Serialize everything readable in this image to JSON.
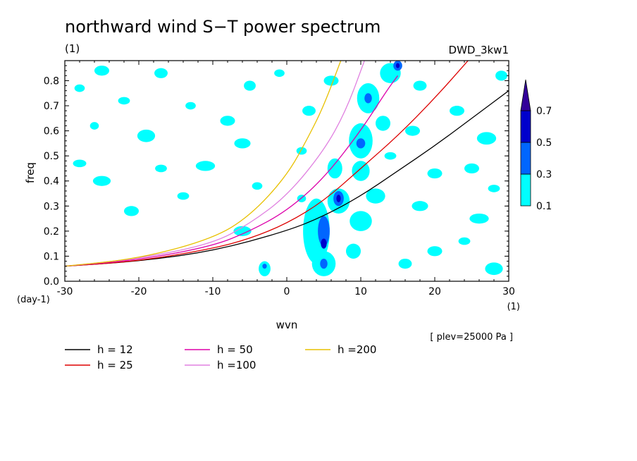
{
  "chart_data": {
    "type": "heatmap",
    "title": "northward wind S−T power spectrum",
    "subtitle_left": "(1)",
    "subtitle_right": "DWD_3kw1",
    "xlabel": "wvn",
    "ylabel": "freq",
    "x_unit": "(1)",
    "y_unit": "(day-1)",
    "annotation": "[ plev=25000 Pa ]",
    "xlim": [
      -30,
      30
    ],
    "ylim": [
      0,
      0.88
    ],
    "x_ticks": [
      -30,
      -20,
      -10,
      0,
      10,
      20,
      30
    ],
    "y_ticks": [
      0.0,
      0.1,
      0.2,
      0.3,
      0.4,
      0.5,
      0.6,
      0.7,
      0.8
    ],
    "y_tick_labels": [
      "0.0",
      "0.1",
      "0.2",
      "0.3",
      "0.4",
      "0.5",
      "0.6",
      "0.7",
      "0.8"
    ],
    "colorbar": {
      "levels": [
        "0.1",
        "0.3",
        "0.5",
        "0.7"
      ],
      "colors": [
        "#00ffff",
        "#0066ff",
        "#0000cc",
        "#330099"
      ]
    },
    "series": [
      {
        "name": "h = 12",
        "color": "#000000",
        "x": [
          -30,
          -20,
          -10,
          0,
          5,
          10,
          15,
          20,
          25,
          30
        ],
        "y": [
          0.06,
          0.08,
          0.12,
          0.2,
          0.26,
          0.34,
          0.44,
          0.54,
          0.65,
          0.76
        ]
      },
      {
        "name": "h = 25",
        "color": "#dd0000",
        "x": [
          -30,
          -20,
          -10,
          -5,
          0,
          5,
          10,
          15,
          20,
          24.5
        ],
        "y": [
          0.06,
          0.08,
          0.13,
          0.17,
          0.23,
          0.32,
          0.45,
          0.58,
          0.73,
          0.88
        ]
      },
      {
        "name": "h = 50",
        "color": "#dd00aa",
        "x": [
          -30,
          -20,
          -10,
          -5,
          0,
          5,
          10,
          13.5,
          15
        ],
        "y": [
          0.06,
          0.085,
          0.14,
          0.2,
          0.28,
          0.41,
          0.6,
          0.76,
          0.82
        ]
      },
      {
        "name": "h =100",
        "color": "#e080e0",
        "x": [
          -30,
          -20,
          -10,
          -5,
          0,
          5,
          8,
          10.5
        ],
        "y": [
          0.06,
          0.09,
          0.15,
          0.23,
          0.34,
          0.52,
          0.68,
          0.88
        ]
      },
      {
        "name": "h =200",
        "color": "#e8c000",
        "x": [
          -30,
          -20,
          -10,
          -5,
          0,
          3,
          5,
          7.3
        ],
        "y": [
          0.06,
          0.09,
          0.17,
          0.26,
          0.42,
          0.58,
          0.7,
          0.88
        ]
      }
    ],
    "contour_patches": [
      {
        "x": -25,
        "y": 0.84,
        "rx": 1.0,
        "ry": 0.02,
        "level": 0
      },
      {
        "x": -22,
        "y": 0.72,
        "rx": 0.8,
        "ry": 0.015,
        "level": 0
      },
      {
        "x": -28,
        "y": 0.77,
        "rx": 0.7,
        "ry": 0.015,
        "level": 0
      },
      {
        "x": -17,
        "y": 0.83,
        "rx": 0.9,
        "ry": 0.02,
        "level": 0
      },
      {
        "x": -13,
        "y": 0.7,
        "rx": 0.7,
        "ry": 0.015,
        "level": 0
      },
      {
        "x": -19,
        "y": 0.58,
        "rx": 1.2,
        "ry": 0.025,
        "level": 0
      },
      {
        "x": -11,
        "y": 0.46,
        "rx": 1.3,
        "ry": 0.02,
        "level": 0
      },
      {
        "x": -17,
        "y": 0.45,
        "rx": 0.8,
        "ry": 0.015,
        "level": 0
      },
      {
        "x": -25,
        "y": 0.4,
        "rx": 1.2,
        "ry": 0.02,
        "level": 0
      },
      {
        "x": -28,
        "y": 0.47,
        "rx": 0.9,
        "ry": 0.015,
        "level": 0
      },
      {
        "x": -8,
        "y": 0.64,
        "rx": 1.0,
        "ry": 0.02,
        "level": 0
      },
      {
        "x": -5,
        "y": 0.78,
        "rx": 0.8,
        "ry": 0.02,
        "level": 0
      },
      {
        "x": -6,
        "y": 0.55,
        "rx": 1.1,
        "ry": 0.02,
        "level": 0
      },
      {
        "x": -21,
        "y": 0.28,
        "rx": 1.0,
        "ry": 0.02,
        "level": 0
      },
      {
        "x": -14,
        "y": 0.34,
        "rx": 0.8,
        "ry": 0.015,
        "level": 0
      },
      {
        "x": -4,
        "y": 0.38,
        "rx": 0.7,
        "ry": 0.015,
        "level": 0
      },
      {
        "x": -6,
        "y": 0.2,
        "rx": 1.2,
        "ry": 0.02,
        "level": 0
      },
      {
        "x": -3,
        "y": 0.05,
        "rx": 0.8,
        "ry": 0.03,
        "level": 0
      },
      {
        "x": -3,
        "y": 0.06,
        "rx": 0.3,
        "ry": 0.01,
        "level": 1
      },
      {
        "x": 3,
        "y": 0.68,
        "rx": 0.9,
        "ry": 0.02,
        "level": 0
      },
      {
        "x": 6,
        "y": 0.8,
        "rx": 1.0,
        "ry": 0.02,
        "level": 0
      },
      {
        "x": 2,
        "y": 0.52,
        "rx": 0.7,
        "ry": 0.015,
        "level": 0
      },
      {
        "x": 4,
        "y": 0.2,
        "rx": 1.8,
        "ry": 0.13,
        "level": 0
      },
      {
        "x": 5,
        "y": 0.2,
        "rx": 0.8,
        "ry": 0.06,
        "level": 1
      },
      {
        "x": 5,
        "y": 0.15,
        "rx": 0.4,
        "ry": 0.02,
        "level": 2
      },
      {
        "x": 5,
        "y": 0.07,
        "rx": 1.6,
        "ry": 0.05,
        "level": 0
      },
      {
        "x": 5,
        "y": 0.07,
        "rx": 0.5,
        "ry": 0.02,
        "level": 1
      },
      {
        "x": 7,
        "y": 0.32,
        "rx": 1.5,
        "ry": 0.05,
        "level": 0
      },
      {
        "x": 7,
        "y": 0.33,
        "rx": 0.7,
        "ry": 0.03,
        "level": 1
      },
      {
        "x": 7,
        "y": 0.33,
        "rx": 0.3,
        "ry": 0.015,
        "level": 2
      },
      {
        "x": 6.5,
        "y": 0.45,
        "rx": 1.0,
        "ry": 0.04,
        "level": 0
      },
      {
        "x": 10,
        "y": 0.56,
        "rx": 1.6,
        "ry": 0.07,
        "level": 0
      },
      {
        "x": 10,
        "y": 0.55,
        "rx": 0.6,
        "ry": 0.02,
        "level": 1
      },
      {
        "x": 10,
        "y": 0.44,
        "rx": 1.2,
        "ry": 0.04,
        "level": 0
      },
      {
        "x": 11,
        "y": 0.73,
        "rx": 1.5,
        "ry": 0.06,
        "level": 0
      },
      {
        "x": 11,
        "y": 0.73,
        "rx": 0.5,
        "ry": 0.02,
        "level": 1
      },
      {
        "x": 14,
        "y": 0.83,
        "rx": 1.4,
        "ry": 0.04,
        "level": 0
      },
      {
        "x": 15,
        "y": 0.86,
        "rx": 0.6,
        "ry": 0.02,
        "level": 1
      },
      {
        "x": 15,
        "y": 0.86,
        "rx": 0.25,
        "ry": 0.01,
        "level": 2
      },
      {
        "x": 13,
        "y": 0.63,
        "rx": 1.0,
        "ry": 0.03,
        "level": 0
      },
      {
        "x": 12,
        "y": 0.34,
        "rx": 1.3,
        "ry": 0.03,
        "level": 0
      },
      {
        "x": 10,
        "y": 0.24,
        "rx": 1.5,
        "ry": 0.04,
        "level": 0
      },
      {
        "x": 9,
        "y": 0.12,
        "rx": 1.0,
        "ry": 0.03,
        "level": 0
      },
      {
        "x": 14,
        "y": 0.5,
        "rx": 0.8,
        "ry": 0.015,
        "level": 0
      },
      {
        "x": 17,
        "y": 0.6,
        "rx": 1.0,
        "ry": 0.02,
        "level": 0
      },
      {
        "x": 18,
        "y": 0.78,
        "rx": 0.9,
        "ry": 0.02,
        "level": 0
      },
      {
        "x": 23,
        "y": 0.68,
        "rx": 1.0,
        "ry": 0.02,
        "level": 0
      },
      {
        "x": 27,
        "y": 0.57,
        "rx": 1.3,
        "ry": 0.025,
        "level": 0
      },
      {
        "x": 25,
        "y": 0.45,
        "rx": 1.0,
        "ry": 0.02,
        "level": 0
      },
      {
        "x": 20,
        "y": 0.43,
        "rx": 1.0,
        "ry": 0.02,
        "level": 0
      },
      {
        "x": 28,
        "y": 0.37,
        "rx": 0.8,
        "ry": 0.015,
        "level": 0
      },
      {
        "x": 18,
        "y": 0.3,
        "rx": 1.1,
        "ry": 0.02,
        "level": 0
      },
      {
        "x": 26,
        "y": 0.25,
        "rx": 1.3,
        "ry": 0.02,
        "level": 0
      },
      {
        "x": 20,
        "y": 0.12,
        "rx": 1.0,
        "ry": 0.02,
        "level": 0
      },
      {
        "x": 28,
        "y": 0.05,
        "rx": 1.2,
        "ry": 0.025,
        "level": 0
      },
      {
        "x": 24,
        "y": 0.16,
        "rx": 0.8,
        "ry": 0.015,
        "level": 0
      },
      {
        "x": 16,
        "y": 0.07,
        "rx": 0.9,
        "ry": 0.02,
        "level": 0
      },
      {
        "x": -26,
        "y": 0.62,
        "rx": 0.6,
        "ry": 0.015,
        "level": 0
      },
      {
        "x": -1,
        "y": 0.83,
        "rx": 0.7,
        "ry": 0.015,
        "level": 0
      },
      {
        "x": 2,
        "y": 0.33,
        "rx": 0.6,
        "ry": 0.015,
        "level": 0
      },
      {
        "x": 29,
        "y": 0.82,
        "rx": 0.8,
        "ry": 0.02,
        "level": 0
      }
    ]
  }
}
